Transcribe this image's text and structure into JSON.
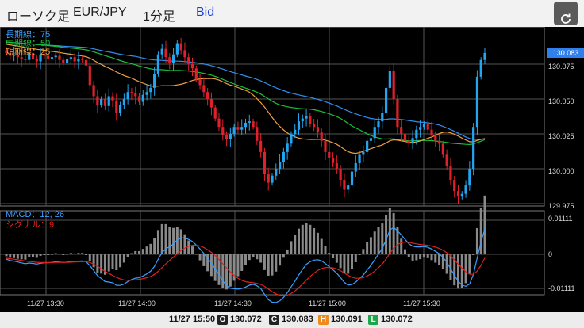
{
  "header": {
    "chart_type": "ローソク足",
    "pair": "EUR/JPY",
    "timeframe": "1分足",
    "price_type": "Bid",
    "refresh_icon": "refresh-icon"
  },
  "legend_main": {
    "long_ma": "長期線：75",
    "mid_ma": "中期線：50",
    "short_ma": "短期線：25"
  },
  "legend_macd": {
    "macd": "MACD：12, 26",
    "signal": "シグナル：9"
  },
  "price_axis": [
    "130.075",
    "130.050",
    "130.025",
    "130.000",
    "129.975"
  ],
  "current_price": "130.083",
  "macd_axis": [
    "0.01111",
    "0",
    "-0.01111"
  ],
  "time_axis": [
    "11/27 13:30",
    "11/27 14:00",
    "11/27 14:30",
    "11/27 15:00",
    "11/27 15:30"
  ],
  "footer": {
    "time": "11/27 15:50",
    "open_label": "O",
    "open_value": "130.072",
    "close_label": "C",
    "close_value": "130.083",
    "high_label": "H",
    "high_value": "130.091",
    "low_label": "L",
    "low_value": "130.072"
  },
  "colors": {
    "up": "#22a6f0",
    "down": "#e0202a",
    "long_ma": "#2f8ff0",
    "mid_ma": "#19c03a",
    "short_ma": "#f0a040",
    "macd": "#3aa0ff",
    "signal": "#e02020",
    "hist": "#8a8a8a"
  },
  "chart_data": {
    "type": "candlestick",
    "series": [
      "長期線：75",
      "中期線：50",
      "短期線：25"
    ],
    "close_approx": [
      130.083,
      130.081,
      130.082,
      130.08,
      130.079,
      130.078,
      130.083,
      130.079,
      130.077,
      130.082,
      130.081,
      130.079,
      130.08,
      130.081,
      130.078,
      130.076,
      130.079,
      130.08,
      130.077,
      130.079,
      130.078,
      130.074,
      130.06,
      130.052,
      130.046,
      130.05,
      130.045,
      130.052,
      130.049,
      130.04,
      130.046,
      130.05,
      130.055,
      130.054,
      130.052,
      130.048,
      130.053,
      130.055,
      130.058,
      130.068,
      130.082,
      130.086,
      130.08,
      130.076,
      130.082,
      130.09,
      130.085,
      130.08,
      130.075,
      130.072,
      130.064,
      130.06,
      130.055,
      130.05,
      130.044,
      130.036,
      130.03,
      130.024,
      130.021,
      130.025,
      130.03,
      130.028,
      130.03,
      130.033,
      130.034,
      130.03,
      130.02,
      130.012,
      129.996,
      129.99,
      129.995,
      130.0,
      130.005,
      130.012,
      130.018,
      130.025,
      130.028,
      130.034,
      130.036,
      130.038,
      130.032,
      130.03,
      130.026,
      130.02,
      130.012,
      130.008,
      130.004,
      130.0,
      129.992,
      129.985,
      129.988,
      129.998,
      130.004,
      130.01,
      130.012,
      130.02,
      130.022,
      130.03,
      130.034,
      130.04,
      130.058,
      130.07,
      130.05,
      130.03,
      130.025,
      130.02,
      130.018,
      130.022,
      130.028,
      130.03,
      130.032,
      130.028,
      130.024,
      130.02,
      130.018,
      130.01,
      130.002,
      129.992,
      129.984,
      129.98,
      129.982,
      129.988,
      130.0,
      130.03,
      130.066,
      130.078,
      130.083
    ],
    "macd_ylim": [
      -0.01111,
      0.01111
    ]
  }
}
